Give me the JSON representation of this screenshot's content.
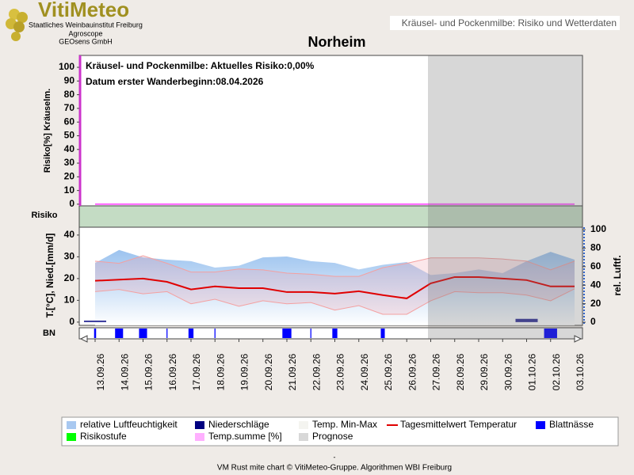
{
  "header": {
    "logo": "VitiMeteo",
    "org": [
      "Staatliches Weinbauinstitut Freiburg",
      "Agroscope",
      "GEOsens GmbH"
    ],
    "tab": "Kräusel- und Pockenmilbe: Risiko und Wetterdaten"
  },
  "chart_data": [
    {
      "type": "line",
      "title": "Norheim",
      "annotations": [
        "Kräusel- und Pockenmilbe: Aktuelles Risiko:0,00%",
        "Datum erster Wanderbeginn:08.04.2026"
      ],
      "ylabel": "Risiko[%] Kräuselm.",
      "band_label": "Risiko",
      "x": [
        "13.09.26",
        "14.09.26",
        "15.09.26",
        "16.09.26",
        "17.09.26",
        "18.09.26",
        "19.09.26",
        "20.09.26",
        "21.09.26",
        "22.09.26",
        "23.09.26",
        "24.09.26",
        "25.09.26",
        "26.09.26",
        "27.09.26",
        "28.09.26",
        "29.09.26",
        "30.09.26",
        "01.10.26",
        "02.10.26",
        "03.10.26"
      ],
      "ylim": [
        -1.2,
        108.7
      ],
      "yticks": [
        0,
        10,
        20,
        30,
        40,
        50,
        60,
        70,
        80,
        90,
        100
      ],
      "series": [
        {
          "color": "#ff66ff",
          "values": [
            0,
            0,
            0,
            0,
            0,
            0,
            0,
            0,
            0,
            0,
            0,
            0,
            0,
            0,
            0,
            0,
            0,
            0,
            0,
            0,
            0
          ]
        }
      ]
    },
    {
      "type": "combo",
      "ylabel": "T.[°C], Nied.[mm/d]",
      "y2label": "rel. Luftf.",
      "ylim": [
        -1.5,
        43.6
      ],
      "yticks": [
        0,
        10,
        20,
        30,
        40
      ],
      "y2lim": [
        -3.4,
        102.6
      ],
      "y2ticks": [
        0,
        20,
        40,
        60,
        80,
        100
      ],
      "humidity": {
        "axis": "y2",
        "color": "#a8c8f0",
        "values": [
          64,
          78,
          70,
          67.5,
          66,
          59,
          61,
          70,
          71,
          66,
          64,
          57,
          62,
          65,
          51,
          53,
          57,
          53,
          66,
          76,
          67.5
        ]
      },
      "tmax": {
        "color": "#f4a0a0",
        "values": [
          28,
          27,
          30.5,
          27,
          23,
          23,
          24.4,
          24,
          22.5,
          22,
          21,
          21,
          25,
          27,
          29.5,
          29.5,
          29.5,
          29,
          28,
          24,
          28
        ]
      },
      "tmin": {
        "color": "#f4a0a0",
        "values": [
          14,
          15,
          13,
          14,
          8.4,
          10.5,
          7.3,
          9.8,
          8.4,
          9,
          5.5,
          7.6,
          3.6,
          3.6,
          9.8,
          14,
          13.5,
          13.5,
          12.4,
          9.8,
          15.3
        ]
      },
      "tmean": {
        "color": "#e00000",
        "values": [
          19,
          19.5,
          20,
          18.5,
          15,
          16.4,
          15.6,
          15.6,
          13.8,
          13.8,
          13.1,
          14.2,
          12.4,
          10.9,
          17.8,
          20.7,
          20.7,
          20,
          19.3,
          16.4,
          16.4
        ]
      },
      "precip": {
        "color": "#000080",
        "values": [
          0.7,
          0,
          0,
          0,
          0,
          0,
          0,
          0,
          0,
          0,
          0,
          0,
          0,
          0,
          0,
          0,
          0,
          0,
          1.5,
          0,
          0
        ]
      }
    },
    {
      "type": "strip",
      "ylabel": "BN",
      "color": "#0000ff",
      "values": [
        2,
        8,
        8,
        1,
        5,
        1,
        0,
        0,
        9,
        1,
        5,
        0,
        4,
        0,
        0,
        0,
        0,
        0,
        0,
        13,
        0
      ]
    }
  ],
  "legend": [
    {
      "name": "relative Luftfeuchtigkeit",
      "color": "#a8c8f0"
    },
    {
      "name": "Niederschläge",
      "color": "#000080"
    },
    {
      "name": "Temp. Min-Max",
      "color": "#f4f4f0"
    },
    {
      "name": "Tagesmittelwert Temperatur",
      "color": "#e00000"
    },
    {
      "name": "Blattnässe",
      "color": "#0000ff"
    },
    {
      "name": "Risikostufe",
      "color": "#00ff00"
    },
    {
      "name": "Temp.summe [%]",
      "color": "#ffb0ff"
    },
    {
      "name": "Prognose",
      "color": "#d8d8d8"
    }
  ],
  "footer": [
    "-",
    "VM Rust mite chart © VitiMeteo-Gruppe. Algorithmen WBI Freiburg"
  ]
}
